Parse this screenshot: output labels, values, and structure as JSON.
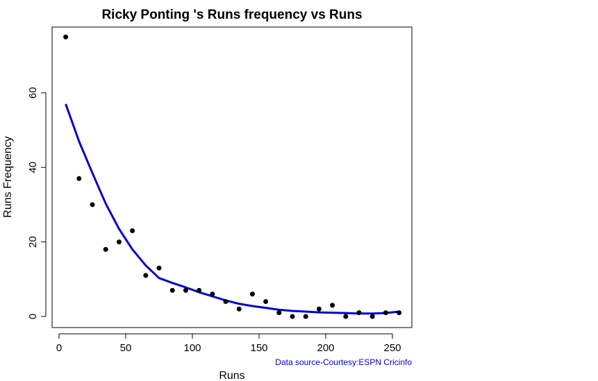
{
  "chart_data": {
    "type": "scatter",
    "title": "Ricky Ponting 's  Runs frequency vs Runs",
    "xlabel": "Runs",
    "ylabel": "Runs Frequency",
    "xlim": [
      0,
      260
    ],
    "ylim": [
      0,
      75
    ],
    "x_ticks": [
      0,
      50,
      100,
      150,
      200,
      250
    ],
    "y_ticks": [
      0,
      20,
      40,
      60
    ],
    "grid": false,
    "series": [
      {
        "type": "scatter",
        "color": "#000000",
        "x": [
          5,
          15,
          25,
          35,
          45,
          55,
          65,
          75,
          85,
          95,
          105,
          115,
          125,
          135,
          145,
          155,
          165,
          175,
          185,
          195,
          205,
          215,
          225,
          235,
          245,
          255
        ],
        "y": [
          75,
          37,
          30,
          18,
          20,
          23,
          11,
          13,
          7,
          7,
          7,
          6,
          4,
          2,
          6,
          4,
          1,
          0,
          0,
          2,
          3,
          0,
          1,
          0,
          1,
          1
        ]
      },
      {
        "type": "line",
        "color": "#0000cc",
        "x": [
          5,
          15,
          25,
          35,
          45,
          55,
          65,
          75,
          85,
          95,
          105,
          115,
          125,
          135,
          145,
          155,
          165,
          175,
          185,
          195,
          205,
          215,
          225,
          235,
          245,
          255
        ],
        "y": [
          57,
          47,
          38.5,
          30.3,
          23.5,
          18,
          13.7,
          10.3,
          9,
          7.8,
          6.5,
          5.4,
          4.3,
          3.4,
          2.8,
          2.3,
          1.8,
          1.5,
          1.3,
          1.1,
          1.0,
          0.9,
          0.8,
          0.8,
          0.9,
          1.3
        ]
      }
    ],
    "annotation": {
      "text": "Data source-Courtesy:ESPN Cricinfo",
      "color": "#0000cc"
    }
  }
}
